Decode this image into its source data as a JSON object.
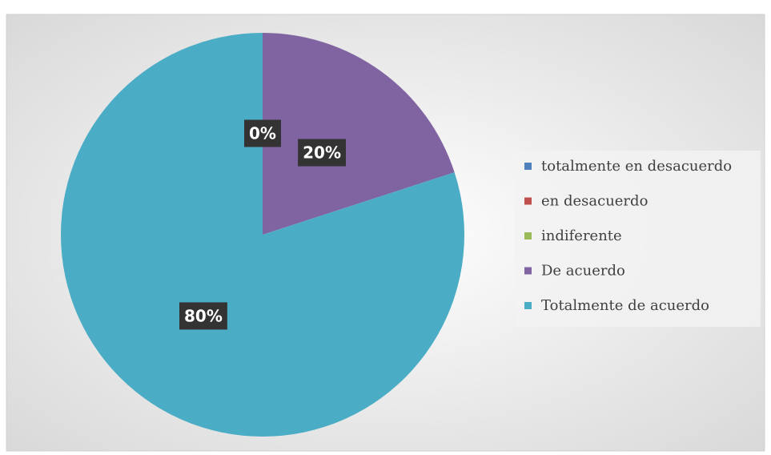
{
  "chart_data": {
    "type": "pie",
    "categories": [
      "totalmente en desacuerdo",
      "en desacuerdo",
      "indiferente",
      "De acuerdo",
      "Totalmente de acuerdo"
    ],
    "values": [
      0,
      0,
      0,
      20,
      80
    ],
    "value_labels": [
      "0%",
      "0%",
      "0%",
      "20%",
      "80%"
    ],
    "colors": [
      "#4f81bd",
      "#c0504d",
      "#9bbb59",
      "#8064a2",
      "#4bacc6"
    ],
    "legend": "right"
  }
}
